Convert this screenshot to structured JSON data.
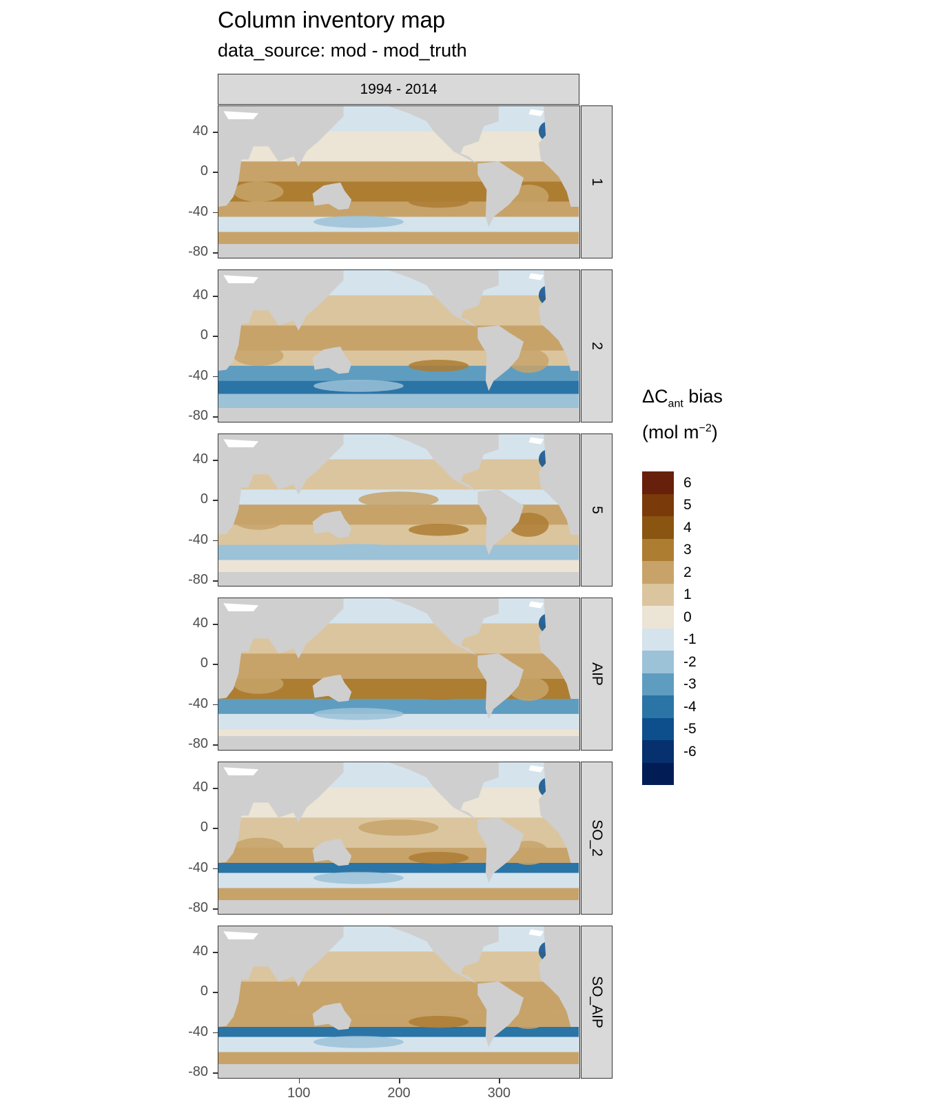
{
  "title": "Column inventory map",
  "subtitle": "data_source: mod - mod_truth",
  "facet_column": "1994 - 2014",
  "facets": [
    "1",
    "2",
    "5",
    "AIP",
    "SO_2",
    "SO_AIP"
  ],
  "axes": {
    "y_ticks": [
      "40",
      "0",
      "-40",
      "-80"
    ],
    "x_ticks": [
      "100",
      "200",
      "300"
    ]
  },
  "legend": {
    "title_main": "ΔC",
    "title_sub": "ant",
    "title_tail": " bias",
    "unit_open": "(mol m",
    "unit_sup": "−2",
    "unit_close": ")",
    "labels": [
      "6",
      "5",
      "4",
      "3",
      "2",
      "1",
      "0",
      "-1",
      "-2",
      "-3",
      "-4",
      "-5",
      "-6"
    ],
    "colors": [
      "#67200b",
      "#7b3a09",
      "#8a5510",
      "#ad7d32",
      "#c7a36a",
      "#dbc59e",
      "#ece4d4",
      "#d5e3ec",
      "#9cc2d8",
      "#5e9dc0",
      "#2b74a6",
      "#0c4f8c",
      "#06306e",
      "#021d55"
    ]
  },
  "map_colors": {
    "land": "#cfcfcf",
    "white_land": "#ffffff"
  },
  "chart_data": {
    "type": "heatmap",
    "title": "Column inventory map",
    "subtitle": "data_source: mod - mod_truth",
    "facet_col": [
      "1994 - 2014"
    ],
    "facet_rows": [
      "1",
      "2",
      "5",
      "AIP",
      "SO_2",
      "SO_AIP"
    ],
    "x_ticks": [
      100,
      200,
      300
    ],
    "y_ticks": [
      40,
      0,
      -40,
      -80
    ],
    "xlim": [
      20,
      380
    ],
    "ylim": [
      -85,
      65
    ],
    "color_breaks": [
      6,
      5,
      4,
      3,
      2,
      1,
      0,
      -1,
      -2,
      -3,
      -4,
      -5,
      -6
    ],
    "legend_title": "ΔC_ant bias (mol m^-2)"
  }
}
